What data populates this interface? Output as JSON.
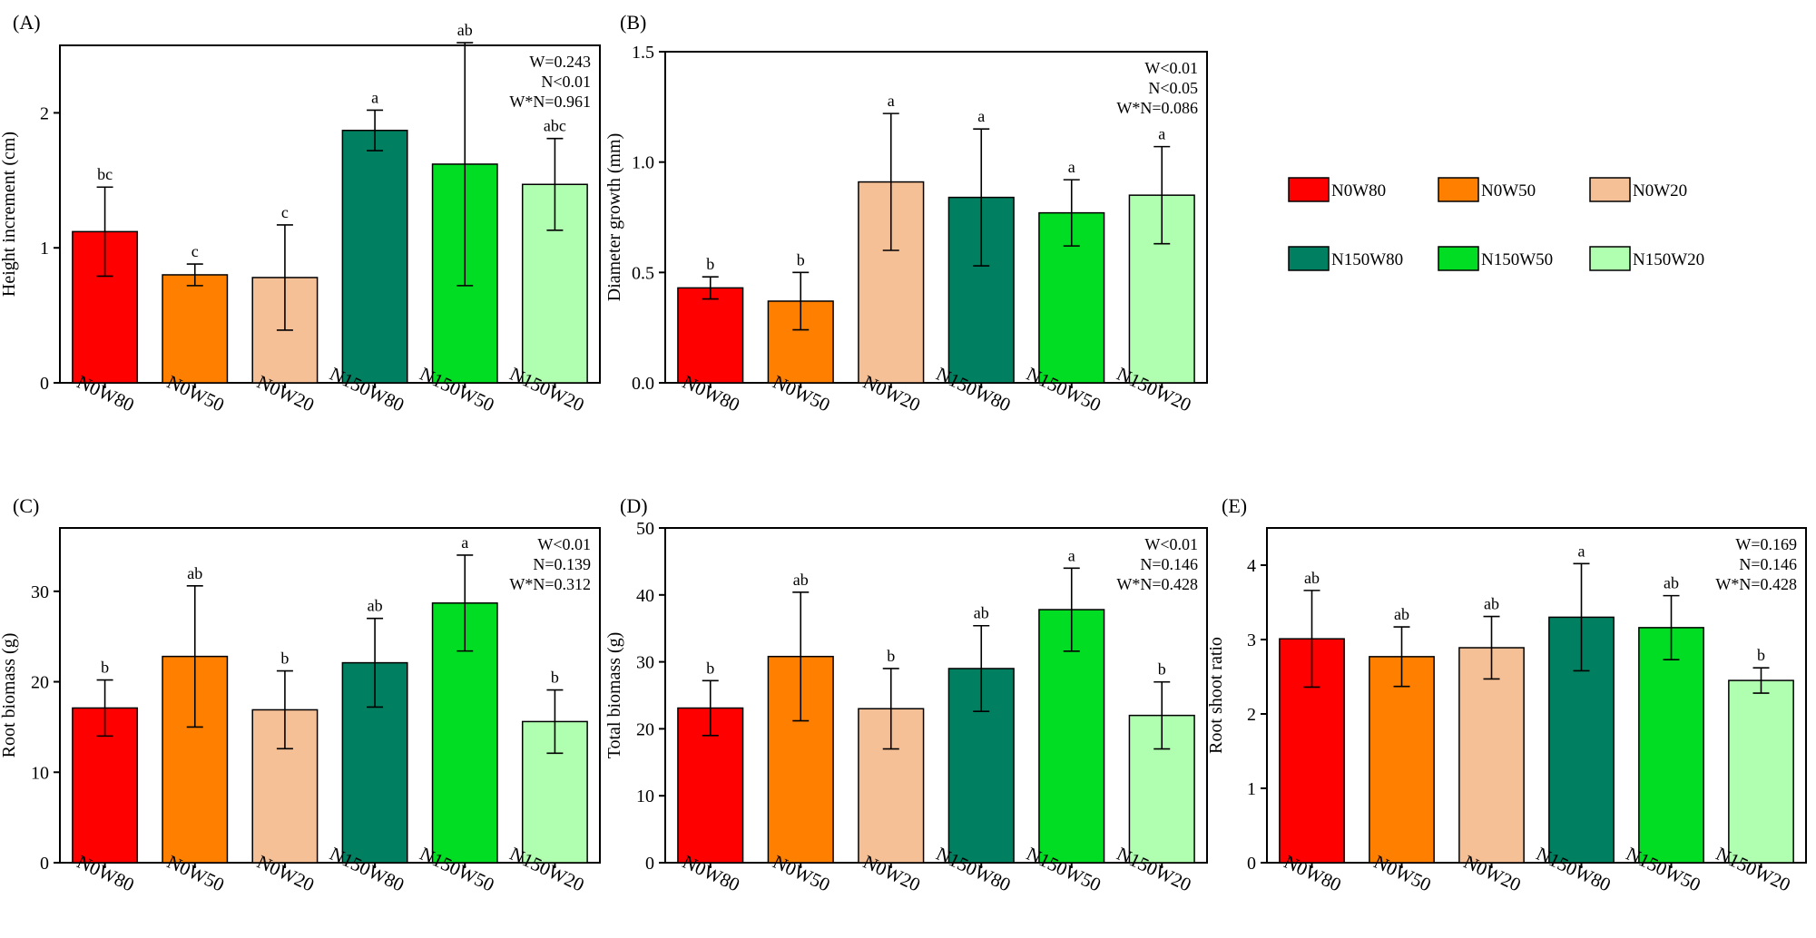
{
  "chart_data": [
    {
      "type": "bar",
      "panel_label": "(A)",
      "ylabel": "Height increment (cm)",
      "ylim": [
        0,
        2.5
      ],
      "yticks": [
        0,
        1,
        2
      ],
      "categories": [
        "N0W80",
        "N0W50",
        "N0W20",
        "N150W80",
        "N150W50",
        "N150W20"
      ],
      "values": [
        1.12,
        0.8,
        0.78,
        1.87,
        1.62,
        1.47
      ],
      "errors": [
        0.33,
        0.08,
        0.39,
        0.15,
        0.9,
        0.34
      ],
      "letters": [
        "bc",
        "c",
        "c",
        "a",
        "ab",
        "abc"
      ],
      "stats": [
        "W=0.243",
        "N<0.01",
        "W*N=0.961"
      ]
    },
    {
      "type": "bar",
      "panel_label": "(B)",
      "ylabel": "Diameter growth (mm)",
      "ylim": [
        0,
        1.5
      ],
      "yticks": [
        "0.0",
        "0.5",
        "1.0",
        "1.5"
      ],
      "categories": [
        "N0W80",
        "N0W50",
        "N0W20",
        "N150W80",
        "N150W50",
        "N150W20"
      ],
      "values": [
        0.43,
        0.37,
        0.91,
        0.84,
        0.77,
        0.85
      ],
      "errors": [
        0.05,
        0.13,
        0.31,
        0.31,
        0.15,
        0.22
      ],
      "letters": [
        "b",
        "b",
        "a",
        "a",
        "a",
        "a"
      ],
      "stats": [
        "W<0.01",
        "N<0.05",
        "W*N=0.086"
      ]
    },
    {
      "type": "bar",
      "panel_label": "(C)",
      "ylabel": "Root biomass (g)",
      "ylim": [
        0,
        37
      ],
      "yticks": [
        0,
        10,
        20,
        30
      ],
      "categories": [
        "N0W80",
        "N0W50",
        "N0W20",
        "N150W80",
        "N150W50",
        "N150W20"
      ],
      "values": [
        17.1,
        22.8,
        16.9,
        22.1,
        28.7,
        15.6
      ],
      "errors": [
        3.1,
        7.8,
        4.3,
        4.9,
        5.3,
        3.5
      ],
      "letters": [
        "b",
        "ab",
        "b",
        "ab",
        "a",
        "b"
      ],
      "stats": [
        "W<0.01",
        "N=0.139",
        "W*N=0.312"
      ]
    },
    {
      "type": "bar",
      "panel_label": "(D)",
      "ylabel": "Total biomass (g)",
      "ylim": [
        0,
        50
      ],
      "yticks": [
        0,
        10,
        20,
        30,
        40,
        50
      ],
      "categories": [
        "N0W80",
        "N0W50",
        "N0W20",
        "N150W80",
        "N150W50",
        "N150W20"
      ],
      "values": [
        23.1,
        30.8,
        23.0,
        29.0,
        37.8,
        22.0
      ],
      "errors": [
        4.1,
        9.6,
        6.0,
        6.4,
        6.2,
        5.0
      ],
      "letters": [
        "b",
        "ab",
        "b",
        "ab",
        "a",
        "b"
      ],
      "stats": [
        "W<0.01",
        "N=0.146",
        "W*N=0.428"
      ]
    },
    {
      "type": "bar",
      "panel_label": "(E)",
      "ylabel": "Root shoot ratio",
      "ylim": [
        0,
        4.5
      ],
      "yticks": [
        0,
        1,
        2,
        3,
        4
      ],
      "categories": [
        "N0W80",
        "N0W50",
        "N0W20",
        "N150W80",
        "N150W50",
        "N150W20"
      ],
      "values": [
        3.01,
        2.77,
        2.89,
        3.3,
        3.16,
        2.45
      ],
      "errors": [
        0.65,
        0.4,
        0.42,
        0.72,
        0.43,
        0.17
      ],
      "letters": [
        "ab",
        "ab",
        "ab",
        "a",
        "ab",
        "b"
      ],
      "stats": [
        "W=0.169",
        "N=0.146",
        "W*N=0.428"
      ]
    }
  ],
  "legend": [
    {
      "name": "N0W80",
      "color": "#ff0000"
    },
    {
      "name": "N0W50",
      "color": "#ff8000"
    },
    {
      "name": "N0W20",
      "color": "#f6c096"
    },
    {
      "name": "N150W80",
      "color": "#008060"
    },
    {
      "name": "N150W50",
      "color": "#00dd22"
    },
    {
      "name": "N150W20",
      "color": "#b0ffb0"
    }
  ]
}
